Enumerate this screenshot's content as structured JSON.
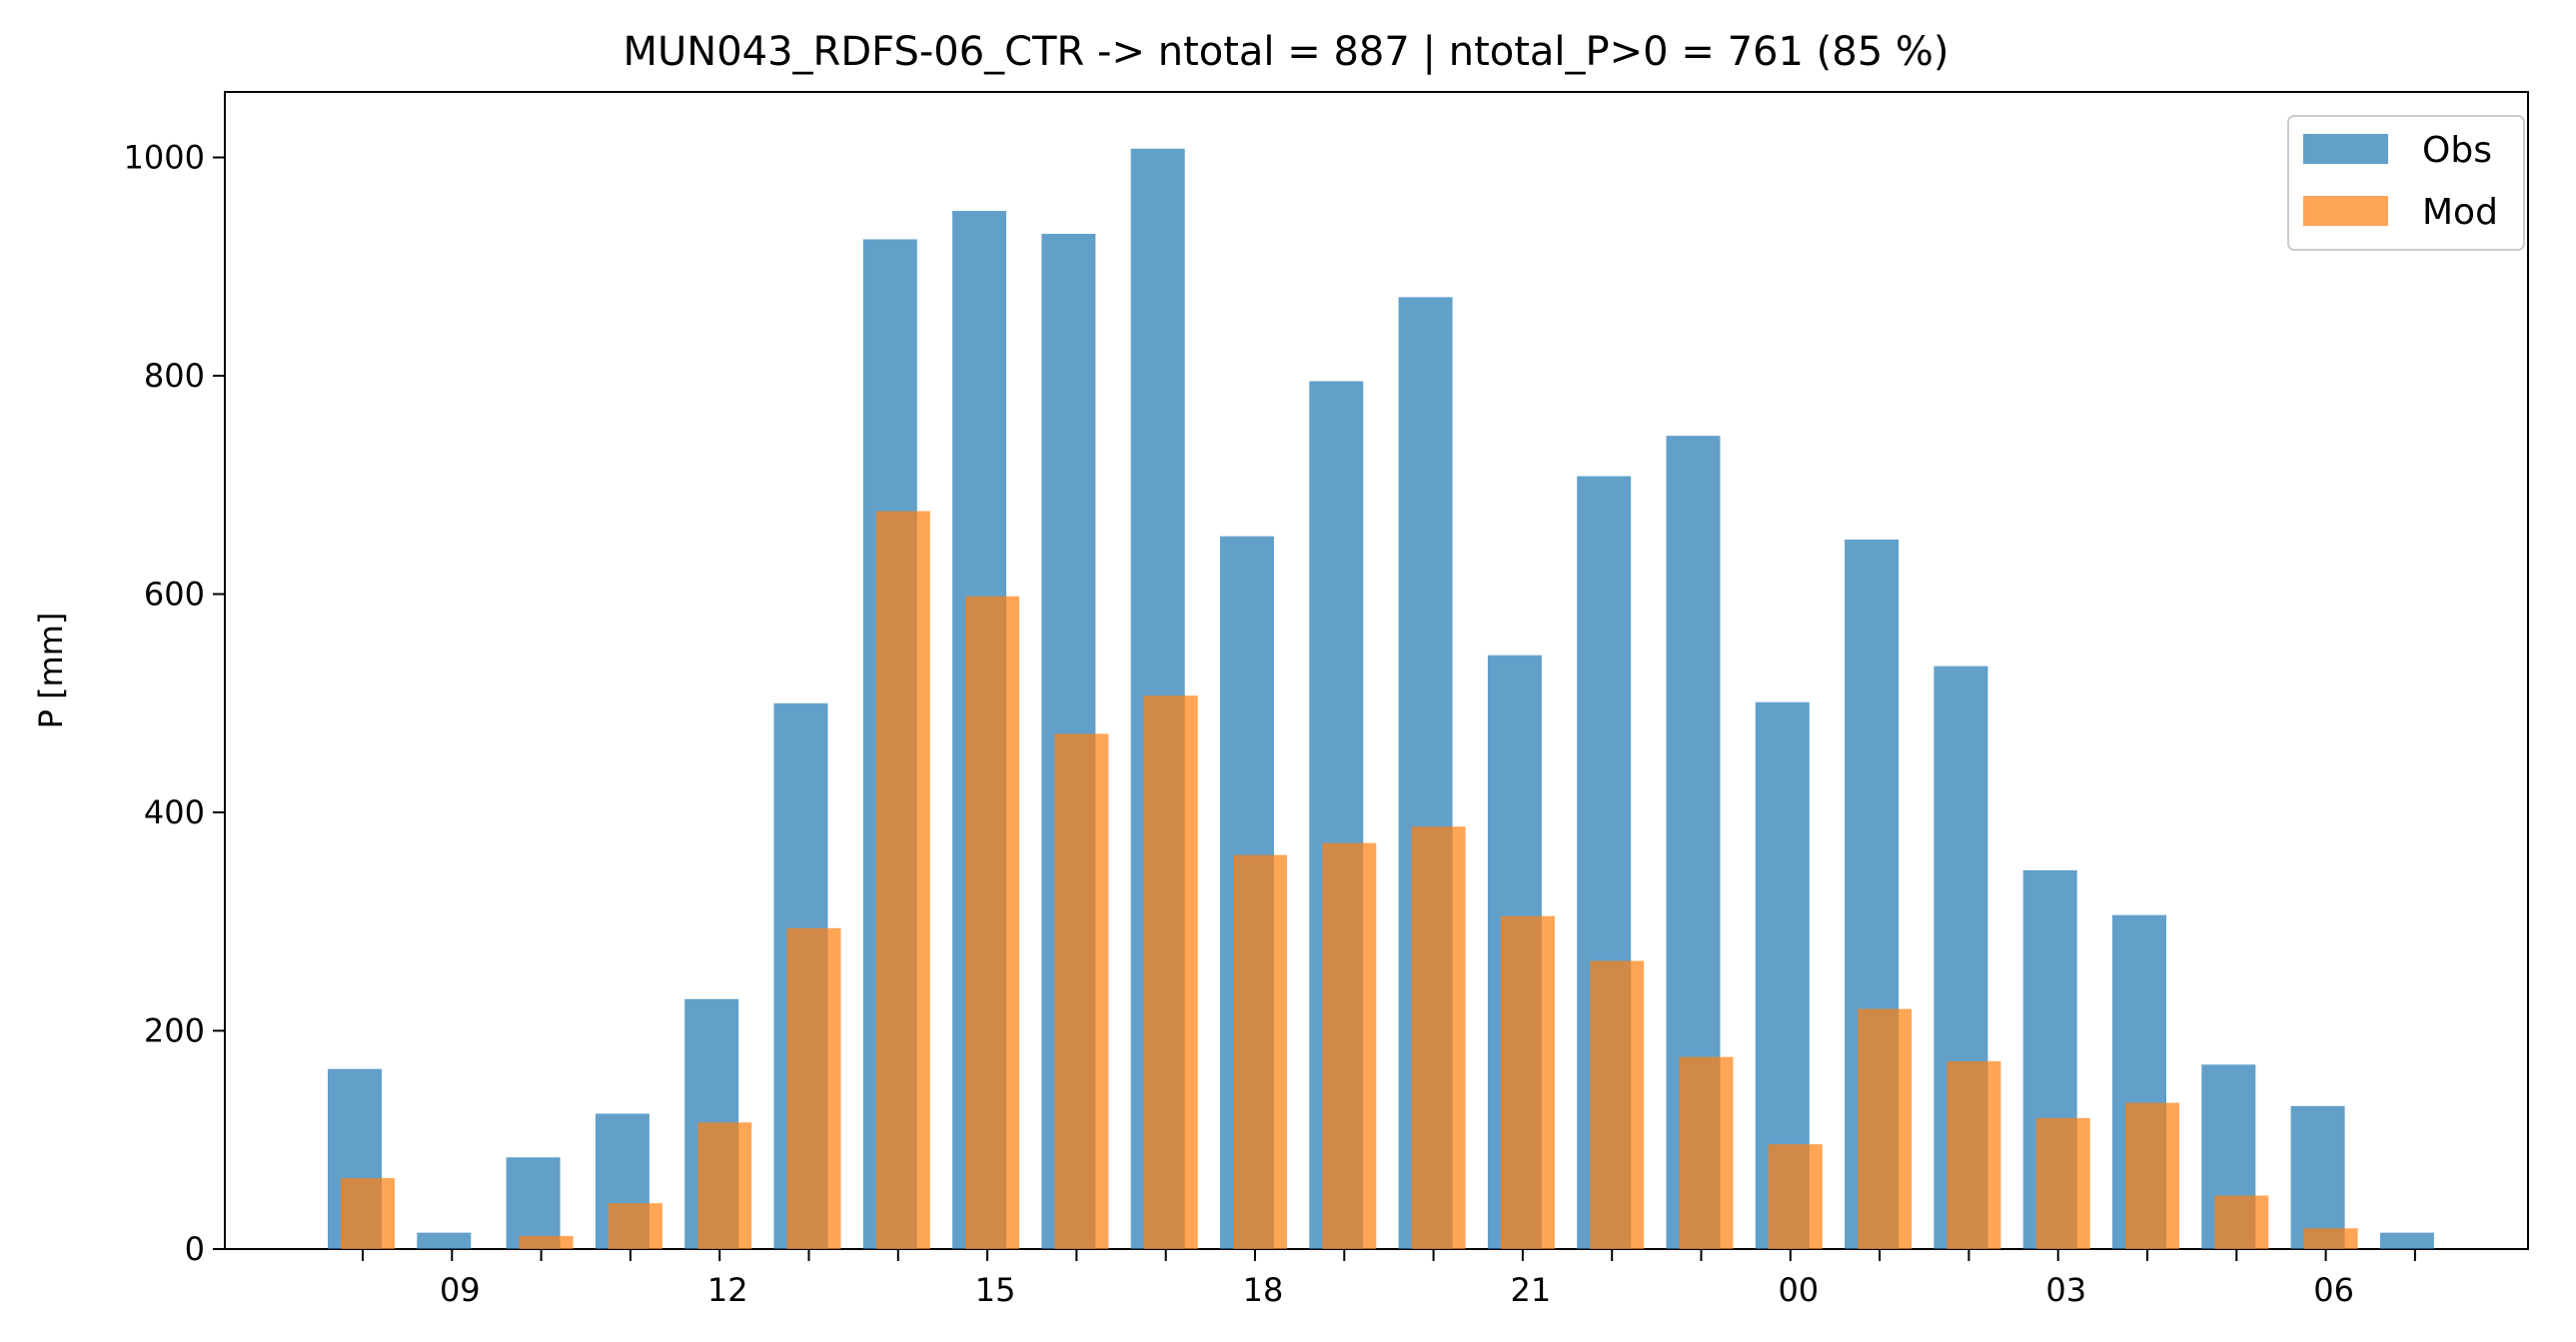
{
  "chart_data": {
    "type": "bar",
    "title": "MUN043_RDFS-06_CTR -> ntotal = 887 | ntotal_P>0 = 761 (85 %)",
    "xlabel": "",
    "ylabel": "P [mm]",
    "ylim": [
      0,
      1060
    ],
    "yticks": [
      0,
      200,
      400,
      600,
      800,
      1000
    ],
    "hours": [
      8,
      9,
      10,
      11,
      12,
      13,
      14,
      15,
      16,
      17,
      18,
      19,
      20,
      21,
      22,
      23,
      0,
      1,
      2,
      3,
      4,
      5,
      6,
      7
    ],
    "xtick_labels": [
      "09",
      "12",
      "15",
      "18",
      "21",
      "00",
      "03",
      "06"
    ],
    "series": [
      {
        "name": "Obs",
        "color": "#1f77b4",
        "values": [
          165,
          15,
          84,
          124,
          229,
          500,
          925,
          951,
          930,
          1008,
          653,
          795,
          872,
          544,
          708,
          745,
          501,
          650,
          534,
          347,
          306,
          169,
          131,
          15
        ]
      },
      {
        "name": "Mod",
        "color": "#ff7f0e",
        "values": [
          65,
          0,
          12,
          42,
          116,
          294,
          676,
          598,
          472,
          507,
          361,
          372,
          387,
          305,
          264,
          176,
          96,
          220,
          172,
          120,
          134,
          49,
          19,
          0
        ]
      }
    ],
    "legend": "top-right",
    "grid": false
  }
}
